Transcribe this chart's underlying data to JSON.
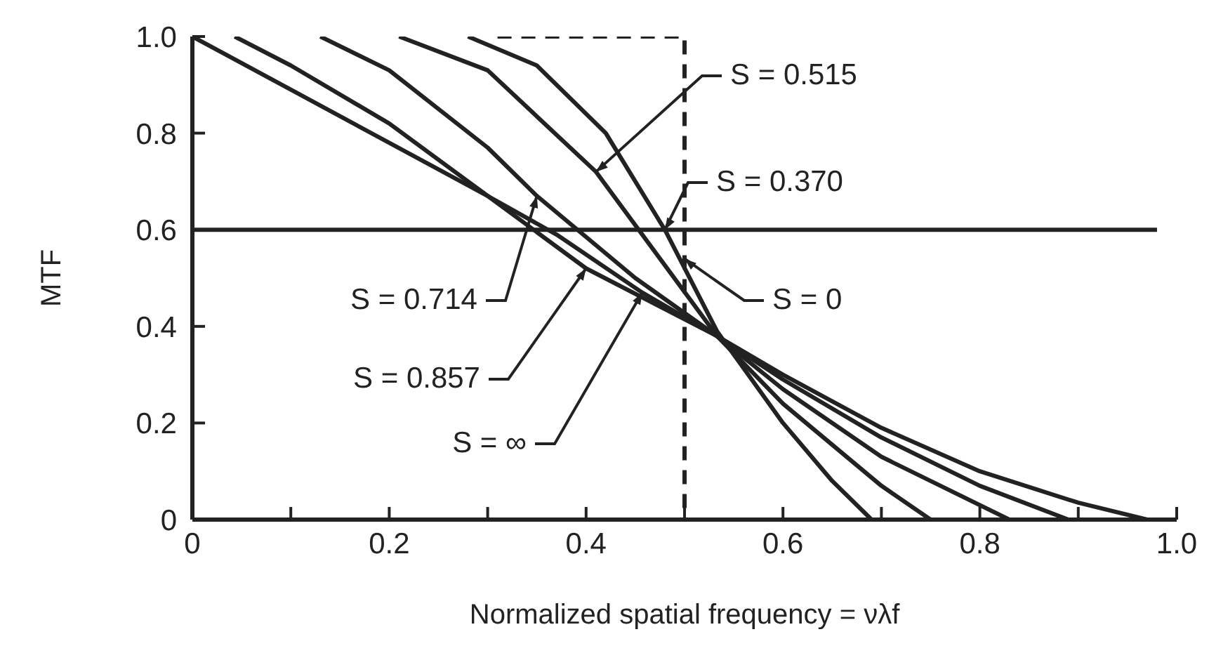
{
  "chart_data": {
    "type": "line",
    "xlabel": "Normalized spatial frequency = νλf",
    "ylabel": "MTF",
    "xlim": [
      0,
      1
    ],
    "ylim": [
      0,
      1
    ],
    "xticks": [
      0,
      {
        "value": 0.1,
        "label": null
      },
      0.2,
      {
        "value": 0.3,
        "label": null
      },
      0.4,
      {
        "value": 0.5,
        "label": null
      },
      0.6,
      {
        "value": 0.7,
        "label": null
      },
      0.8,
      {
        "value": 0.9,
        "label": null
      },
      {
        "value": 1,
        "label": "1.0"
      }
    ],
    "yticks": [
      0,
      0.2,
      0.4,
      0.6,
      0.8,
      {
        "value": 1,
        "label": "1.0"
      }
    ],
    "grid": false,
    "legend": false,
    "marker": "none",
    "line_style": "solid",
    "series": [
      {
        "color": "#222222",
        "x": [
          0,
          0.1,
          0.2,
          0.3,
          0.37,
          0.457,
          0.533,
          0.6,
          0.7,
          0.8,
          0.9,
          0.97
        ],
        "values": [
          1,
          0.89,
          0.78,
          0.67,
          0.59,
          0.47,
          0.38,
          0.3,
          0.19,
          0.1,
          0.035,
          0
        ]
      },
      {
        "color": "#222222",
        "x": [
          0.043,
          0.1,
          0.2,
          0.3,
          0.4,
          0.533,
          0.6,
          0.7,
          0.8,
          0.89
        ],
        "values": [
          1,
          0.94,
          0.82,
          0.67,
          0.52,
          0.38,
          0.29,
          0.17,
          0.07,
          0
        ]
      },
      {
        "color": "#222222",
        "x": [
          0.13,
          0.2,
          0.3,
          0.35,
          0.45,
          0.533,
          0.6,
          0.7,
          0.83
        ],
        "values": [
          1,
          0.93,
          0.77,
          0.67,
          0.5,
          0.38,
          0.27,
          0.13,
          0
        ]
      },
      {
        "color": "#222222",
        "x": [
          0.21,
          0.3,
          0.41,
          0.533,
          0.6,
          0.7,
          0.75
        ],
        "values": [
          1,
          0.93,
          0.72,
          0.38,
          0.24,
          0.07,
          0
        ]
      },
      {
        "color": "#222222",
        "x": [
          0.28,
          0.35,
          0.42,
          0.48,
          0.533,
          0.6,
          0.65,
          0.69
        ],
        "values": [
          1,
          0.94,
          0.8,
          0.6,
          0.39,
          0.2,
          0.08,
          0
        ]
      },
      {
        "color": "#222222",
        "line_style": "dashed",
        "x": [
          0.31,
          0.5,
          0.5
        ],
        "values": [
          1,
          1,
          0
        ]
      },
      {
        "color": "#222222",
        "x": [
          0,
          0.98
        ],
        "values": [
          0.6,
          0.6
        ]
      }
    ],
    "annotations": [
      {
        "text": "S = 0.515",
        "x": 0.41,
        "y": 0.72
      },
      {
        "text": "S = 0.370",
        "x": 0.48,
        "y": 0.6
      },
      {
        "text": "S = 0",
        "x": 0.5,
        "y": 0.54
      },
      {
        "text": "S = 0.714",
        "x": 0.35,
        "y": 0.67
      },
      {
        "text": "S = 0.857",
        "x": 0.4,
        "y": 0.52
      },
      {
        "text": "S = ∞",
        "x": 0.457,
        "y": 0.47
      }
    ]
  }
}
